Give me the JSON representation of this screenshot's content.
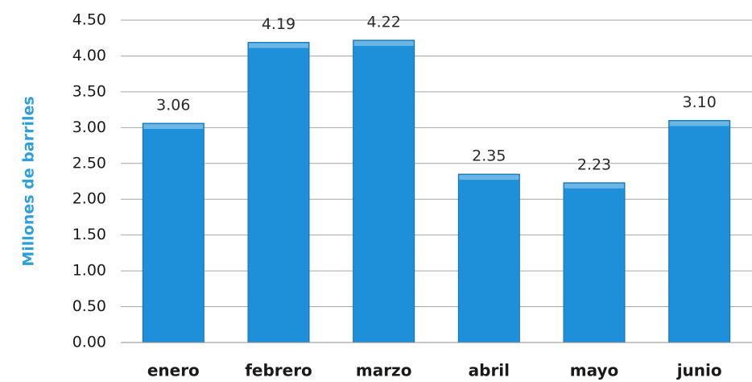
{
  "chart_data": {
    "type": "bar",
    "y_label": "Millones de barriles",
    "categories": [
      "enero",
      "febrero",
      "marzo",
      "abril",
      "mayo",
      "junio"
    ],
    "values": [
      3.06,
      4.19,
      4.22,
      2.35,
      2.23,
      3.1
    ],
    "value_labels": [
      "3.06",
      "4.19",
      "4.22",
      "2.35",
      "2.23",
      "3.10"
    ],
    "color": "#1e8fd9",
    "ylim": [
      0,
      4.5
    ],
    "yticks": [
      {
        "value": 0,
        "label": "0.00"
      },
      {
        "value": 0.5,
        "label": "0.50"
      },
      {
        "value": 1,
        "label": "1.00"
      },
      {
        "value": 1.5,
        "label": "1.50"
      },
      {
        "value": 2,
        "label": "2.00"
      },
      {
        "value": 2.5,
        "label": "2.50"
      },
      {
        "value": 3,
        "label": "3.00"
      },
      {
        "value": 3.5,
        "label": "3.50"
      },
      {
        "value": 4,
        "label": "4.00"
      },
      {
        "value": 4.5,
        "label": "4.50"
      }
    ],
    "grid": true
  }
}
